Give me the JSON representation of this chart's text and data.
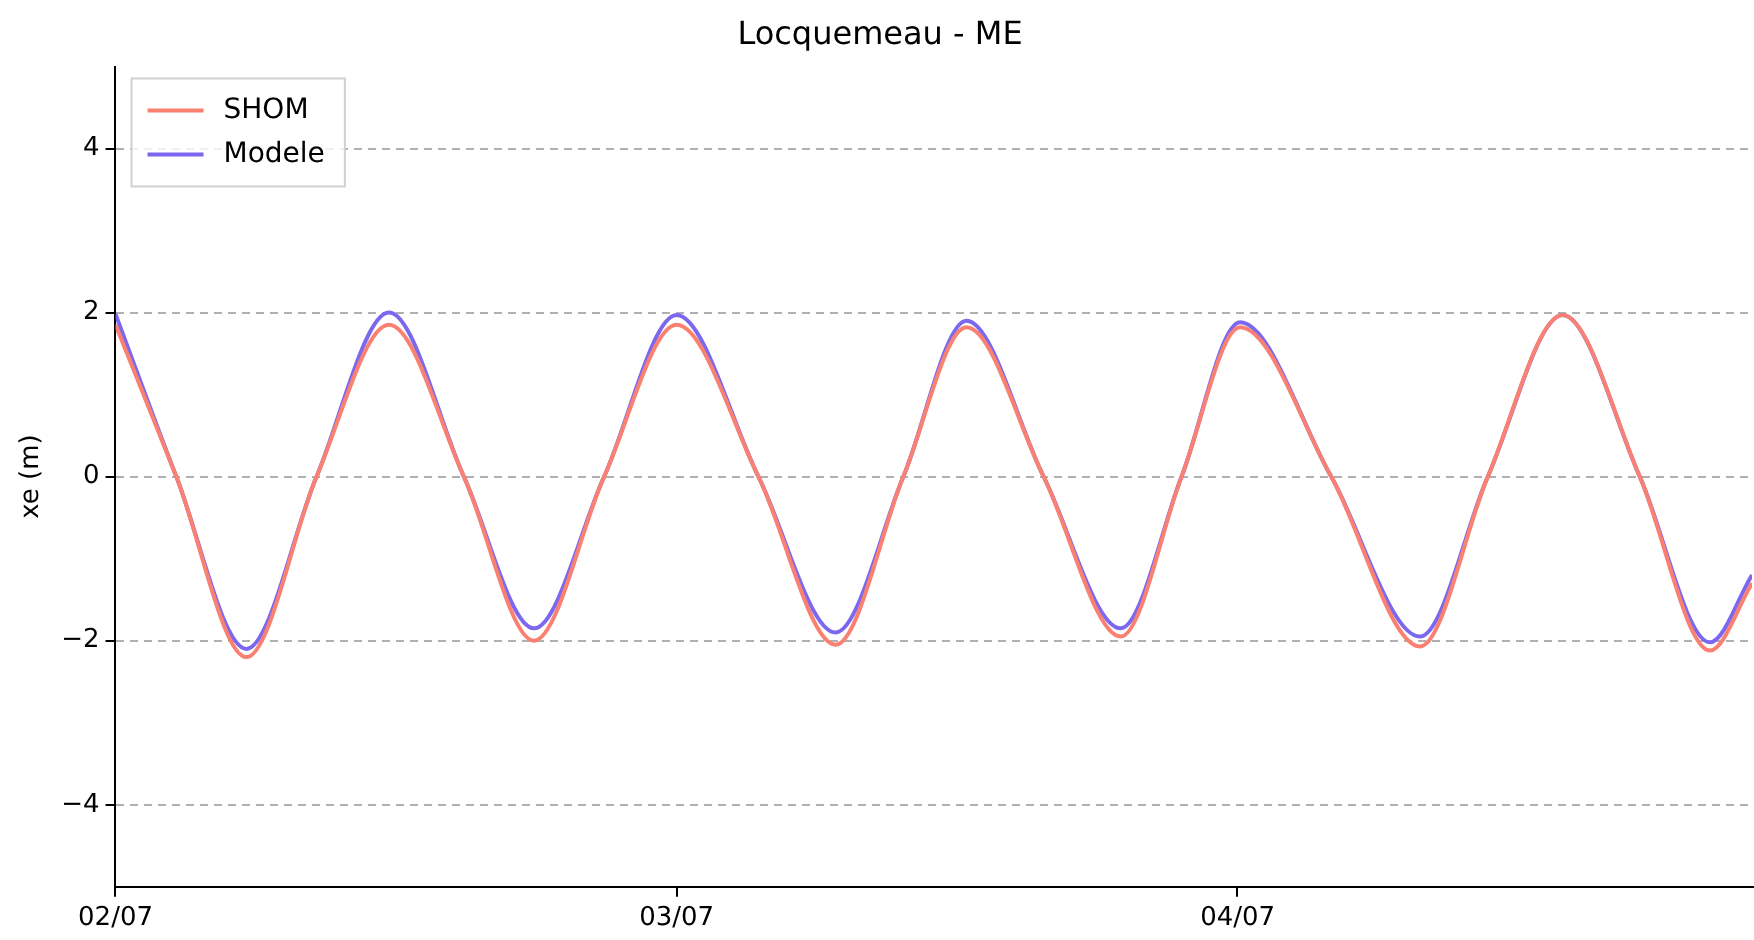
{
  "chart_data": {
    "type": "line",
    "title": "Locquemeau - ME",
    "ylabel": "xe (m)",
    "x": [
      "--07-02T00:00",
      "--07-02T02:36",
      "--07-02T05:36",
      "--07-02T08:36",
      "--07-02T11:42",
      "--07-02T14:54",
      "--07-02T17:54",
      "--07-02T20:54",
      "--07-03T00:00",
      "--07-03T03:30",
      "--07-03T06:48",
      "--07-03T09:42",
      "--07-03T12:24",
      "--07-03T15:42",
      "--07-03T19:00",
      "--07-03T21:36",
      "--07-04T00:06",
      "--07-04T04:00",
      "--07-04T07:48",
      "--07-04T10:42",
      "--07-04T13:54",
      "--07-04T17:12",
      "--07-04T20:12",
      "--07-04T22:00"
    ],
    "series": [
      {
        "name": "SHOM",
        "color": "#fa8072",
        "values": [
          1.85,
          0,
          -2.2,
          0,
          1.85,
          0,
          -2.0,
          0,
          1.85,
          0,
          -2.05,
          0,
          1.82,
          0,
          -1.95,
          0,
          1.82,
          0,
          -2.07,
          0,
          1.97,
          0,
          -2.12,
          -1.3
        ]
      },
      {
        "name": "Modele",
        "color": "#7b68ee",
        "values": [
          1.98,
          0,
          -2.1,
          0,
          2.0,
          0,
          -1.85,
          0,
          1.97,
          0,
          -1.9,
          0,
          1.9,
          0,
          -1.85,
          0,
          1.88,
          0,
          -1.95,
          0,
          1.97,
          0,
          -2.02,
          -1.2
        ]
      }
    ],
    "xlim": [
      "--07-02T00:00",
      "--07-04T22:00"
    ],
    "xticks": [
      {
        "value": "--07-02",
        "label": "02/07"
      },
      {
        "value": "--07-03",
        "label": "03/07"
      },
      {
        "value": "--07-04",
        "label": "04/07"
      }
    ],
    "ylim": [
      -5,
      5
    ],
    "yticks": [
      -4,
      -2,
      0,
      2,
      4
    ],
    "grid": "y",
    "legend": "top left",
    "line_style": "solid",
    "marker": "none"
  }
}
